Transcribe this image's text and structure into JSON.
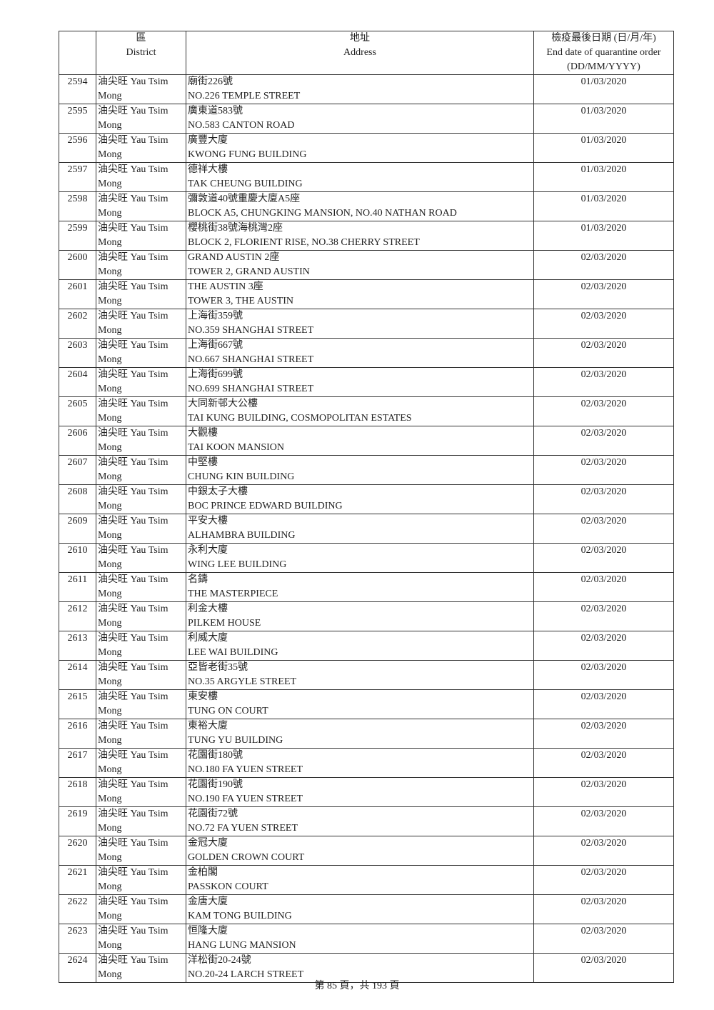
{
  "header": {
    "district_zh": "區",
    "district_en": "District",
    "address_zh": "地址",
    "address_en": "Address",
    "date_zh": "檢疫最後日期 (日/月/年)",
    "date_en": "End date of quarantine order",
    "date_format": "(DD/MM/YYYY)"
  },
  "rows": [
    {
      "no": "2594",
      "district_1": "油尖旺 Yau Tsim",
      "district_2": "Mong",
      "addr_zh": "廟街226號",
      "addr_en": "NO.226 TEMPLE STREET",
      "date": "01/03/2020"
    },
    {
      "no": "2595",
      "district_1": "油尖旺 Yau Tsim",
      "district_2": "Mong",
      "addr_zh": "廣東道583號",
      "addr_en": "NO.583 CANTON ROAD",
      "date": "01/03/2020"
    },
    {
      "no": "2596",
      "district_1": "油尖旺 Yau Tsim",
      "district_2": "Mong",
      "addr_zh": "廣豐大廈",
      "addr_en": "KWONG FUNG BUILDING",
      "date": "01/03/2020"
    },
    {
      "no": "2597",
      "district_1": "油尖旺 Yau Tsim",
      "district_2": "Mong",
      "addr_zh": "德祥大樓",
      "addr_en": "TAK CHEUNG BUILDING",
      "date": "01/03/2020"
    },
    {
      "no": "2598",
      "district_1": "油尖旺 Yau Tsim",
      "district_2": "Mong",
      "addr_zh": "彌敦道40號重慶大廈A5座",
      "addr_en": "BLOCK A5, CHUNGKING MANSION, NO.40 NATHAN ROAD",
      "date": "01/03/2020"
    },
    {
      "no": "2599",
      "district_1": "油尖旺 Yau Tsim",
      "district_2": "Mong",
      "addr_zh": "櫻桃街38號海桃灣2座",
      "addr_en": "BLOCK 2, FLORIENT RISE, NO.38 CHERRY STREET",
      "date": "01/03/2020"
    },
    {
      "no": "2600",
      "district_1": "油尖旺 Yau Tsim",
      "district_2": "Mong",
      "addr_zh": "GRAND AUSTIN 2座",
      "addr_en": "TOWER 2, GRAND AUSTIN",
      "date": "02/03/2020"
    },
    {
      "no": "2601",
      "district_1": "油尖旺 Yau Tsim",
      "district_2": "Mong",
      "addr_zh": "THE AUSTIN 3座",
      "addr_en": "TOWER 3, THE AUSTIN",
      "date": "02/03/2020"
    },
    {
      "no": "2602",
      "district_1": "油尖旺 Yau Tsim",
      "district_2": "Mong",
      "addr_zh": "上海街359號",
      "addr_en": "NO.359 SHANGHAI STREET",
      "date": "02/03/2020"
    },
    {
      "no": "2603",
      "district_1": "油尖旺 Yau Tsim",
      "district_2": "Mong",
      "addr_zh": "上海街667號",
      "addr_en": "NO.667 SHANGHAI STREET",
      "date": "02/03/2020"
    },
    {
      "no": "2604",
      "district_1": "油尖旺 Yau Tsim",
      "district_2": "Mong",
      "addr_zh": "上海街699號",
      "addr_en": "NO.699 SHANGHAI STREET",
      "date": "02/03/2020"
    },
    {
      "no": "2605",
      "district_1": "油尖旺 Yau Tsim",
      "district_2": "Mong",
      "addr_zh": "大同新邨大公樓",
      "addr_en": "TAI KUNG BUILDING, COSMOPOLITAN ESTATES",
      "date": "02/03/2020"
    },
    {
      "no": "2606",
      "district_1": "油尖旺 Yau Tsim",
      "district_2": "Mong",
      "addr_zh": "大觀樓",
      "addr_en": "TAI KOON MANSION",
      "date": "02/03/2020"
    },
    {
      "no": "2607",
      "district_1": "油尖旺 Yau Tsim",
      "district_2": "Mong",
      "addr_zh": "中堅樓",
      "addr_en": "CHUNG KIN BUILDING",
      "date": "02/03/2020"
    },
    {
      "no": "2608",
      "district_1": "油尖旺 Yau Tsim",
      "district_2": "Mong",
      "addr_zh": "中銀太子大樓",
      "addr_en": "BOC PRINCE EDWARD BUILDING",
      "date": "02/03/2020"
    },
    {
      "no": "2609",
      "district_1": "油尖旺 Yau Tsim",
      "district_2": "Mong",
      "addr_zh": "平安大樓",
      "addr_en": "ALHAMBRA BUILDING",
      "date": "02/03/2020"
    },
    {
      "no": "2610",
      "district_1": "油尖旺 Yau Tsim",
      "district_2": "Mong",
      "addr_zh": "永利大廈",
      "addr_en": "WING LEE BUILDING",
      "date": "02/03/2020"
    },
    {
      "no": "2611",
      "district_1": "油尖旺 Yau Tsim",
      "district_2": "Mong",
      "addr_zh": "名鑄",
      "addr_en": "THE MASTERPIECE",
      "date": "02/03/2020"
    },
    {
      "no": "2612",
      "district_1": "油尖旺 Yau Tsim",
      "district_2": "Mong",
      "addr_zh": "利金大樓",
      "addr_en": "PILKEM HOUSE",
      "date": "02/03/2020"
    },
    {
      "no": "2613",
      "district_1": "油尖旺 Yau Tsim",
      "district_2": "Mong",
      "addr_zh": "利威大廈",
      "addr_en": "LEE WAI BUILDING",
      "date": "02/03/2020"
    },
    {
      "no": "2614",
      "district_1": "油尖旺 Yau Tsim",
      "district_2": "Mong",
      "addr_zh": "亞皆老街35號",
      "addr_en": "NO.35 ARGYLE STREET",
      "date": "02/03/2020"
    },
    {
      "no": "2615",
      "district_1": "油尖旺 Yau Tsim",
      "district_2": "Mong",
      "addr_zh": "東安樓",
      "addr_en": "TUNG ON COURT",
      "date": "02/03/2020"
    },
    {
      "no": "2616",
      "district_1": "油尖旺 Yau Tsim",
      "district_2": "Mong",
      "addr_zh": "東裕大廈",
      "addr_en": "TUNG YU BUILDING",
      "date": "02/03/2020"
    },
    {
      "no": "2617",
      "district_1": "油尖旺 Yau Tsim",
      "district_2": "Mong",
      "addr_zh": "花園街180號",
      "addr_en": "NO.180 FA YUEN STREET",
      "date": "02/03/2020"
    },
    {
      "no": "2618",
      "district_1": "油尖旺 Yau Tsim",
      "district_2": "Mong",
      "addr_zh": "花園街190號",
      "addr_en": "NO.190 FA YUEN STREET",
      "date": "02/03/2020"
    },
    {
      "no": "2619",
      "district_1": "油尖旺 Yau Tsim",
      "district_2": "Mong",
      "addr_zh": "花園街72號",
      "addr_en": "NO.72 FA YUEN STREET",
      "date": "02/03/2020"
    },
    {
      "no": "2620",
      "district_1": "油尖旺 Yau Tsim",
      "district_2": "Mong",
      "addr_zh": "金冠大廈",
      "addr_en": "GOLDEN CROWN COURT",
      "date": "02/03/2020"
    },
    {
      "no": "2621",
      "district_1": "油尖旺 Yau Tsim",
      "district_2": "Mong",
      "addr_zh": "金柏閣",
      "addr_en": "PASSKON COURT",
      "date": "02/03/2020"
    },
    {
      "no": "2622",
      "district_1": "油尖旺 Yau Tsim",
      "district_2": "Mong",
      "addr_zh": "金唐大廈",
      "addr_en": "KAM TONG BUILDING",
      "date": "02/03/2020"
    },
    {
      "no": "2623",
      "district_1": "油尖旺 Yau Tsim",
      "district_2": "Mong",
      "addr_zh": "恒隆大廈",
      "addr_en": "HANG LUNG MANSION",
      "date": "02/03/2020"
    },
    {
      "no": "2624",
      "district_1": "油尖旺 Yau Tsim",
      "district_2": "Mong",
      "addr_zh": "洋松街20-24號",
      "addr_en": "NO.20-24 LARCH STREET",
      "date": "02/03/2020"
    }
  ],
  "footer": {
    "page_label": "第 85 頁，共 193 頁"
  }
}
